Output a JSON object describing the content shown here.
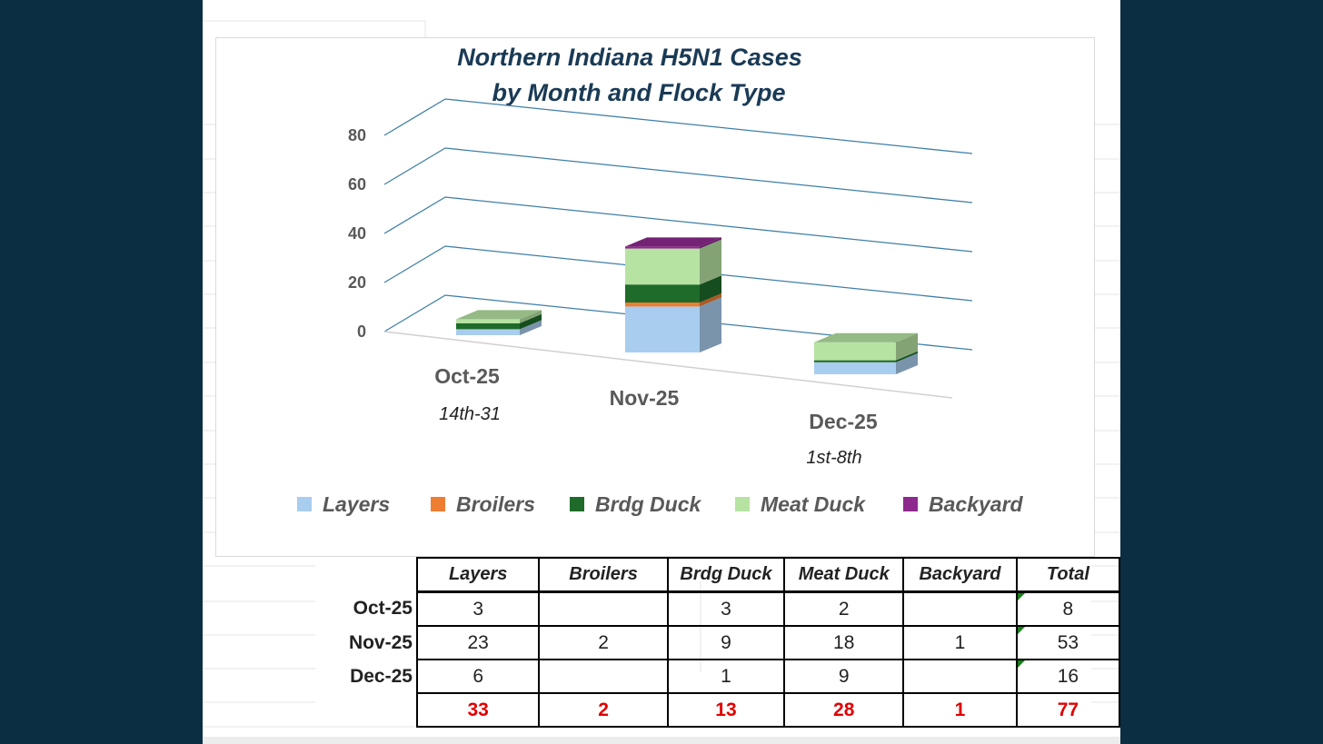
{
  "chart_data": {
    "type": "bar",
    "variant": "3d-stacked-column",
    "title_line1": "Northern Indiana H5N1 Cases",
    "title_line2": "by Month and Flock Type",
    "categories": [
      "Oct-25",
      "Nov-25",
      "Dec-25"
    ],
    "category_sublabels": [
      "14th-31",
      "",
      "1st-8th"
    ],
    "series": [
      {
        "name": "Layers",
        "color": "#a9cdef",
        "values": [
          3,
          23,
          6
        ]
      },
      {
        "name": "Broilers",
        "color": "#ed7d31",
        "values": [
          0,
          2,
          0
        ]
      },
      {
        "name": "Brdg Duck",
        "color": "#1e6b2a",
        "values": [
          3,
          9,
          1
        ]
      },
      {
        "name": "Meat Duck",
        "color": "#b6e3a2",
        "values": [
          2,
          18,
          9
        ]
      },
      {
        "name": "Backyard",
        "color": "#8e2a8e",
        "values": [
          0,
          1,
          0
        ]
      }
    ],
    "yticks": [
      0,
      20,
      40,
      60,
      80
    ],
    "ylim": [
      0,
      80
    ],
    "gridline_color": "#3f7fa6",
    "legend_position": "bottom"
  },
  "table": {
    "headers": [
      "Layers",
      "Broilers",
      "Brdg Duck",
      "Meat Duck",
      "Backyard",
      "Total"
    ],
    "rows": [
      {
        "label": "Oct-25",
        "cells": [
          "3",
          "",
          "3",
          "2",
          "",
          "8"
        ]
      },
      {
        "label": "Nov-25",
        "cells": [
          "23",
          "2",
          "9",
          "18",
          "1",
          "53"
        ]
      },
      {
        "label": "Dec-25",
        "cells": [
          "6",
          "",
          "1",
          "9",
          "",
          "16"
        ]
      }
    ],
    "totals": [
      "33",
      "2",
      "13",
      "28",
      "1",
      "77"
    ],
    "totals_color": "#e10000"
  }
}
